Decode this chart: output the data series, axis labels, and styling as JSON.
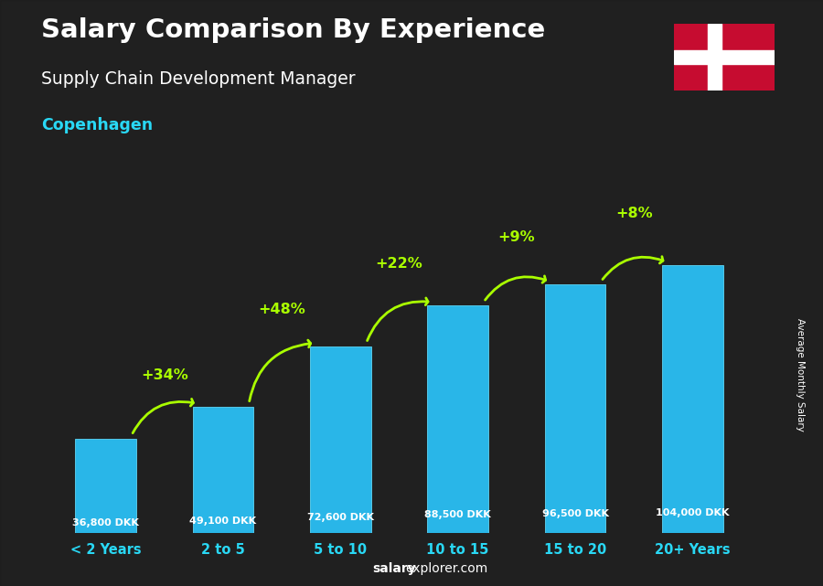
{
  "title": "Salary Comparison By Experience",
  "subtitle": "Supply Chain Development Manager",
  "city": "Copenhagen",
  "categories": [
    "< 2 Years",
    "2 to 5",
    "5 to 10",
    "10 to 15",
    "15 to 20",
    "20+ Years"
  ],
  "values": [
    36800,
    49100,
    72600,
    88500,
    96500,
    104000
  ],
  "labels": [
    "36,800 DKK",
    "49,100 DKK",
    "72,600 DKK",
    "88,500 DKK",
    "96,500 DKK",
    "104,000 DKK"
  ],
  "pct_changes": [
    "+34%",
    "+48%",
    "+22%",
    "+9%",
    "+8%"
  ],
  "bar_color": "#29b6e8",
  "pct_color": "#aaff00",
  "title_color": "#ffffff",
  "subtitle_color": "#ffffff",
  "city_color": "#29d8f5",
  "bg_color": "#2a2a2a",
  "footer_bold": "salary",
  "footer_normal": "explorer.com",
  "ylabel": "Average Monthly Salary",
  "ylim": [
    0,
    125000
  ],
  "figsize": [
    9.0,
    6.41
  ],
  "dpi": 100
}
